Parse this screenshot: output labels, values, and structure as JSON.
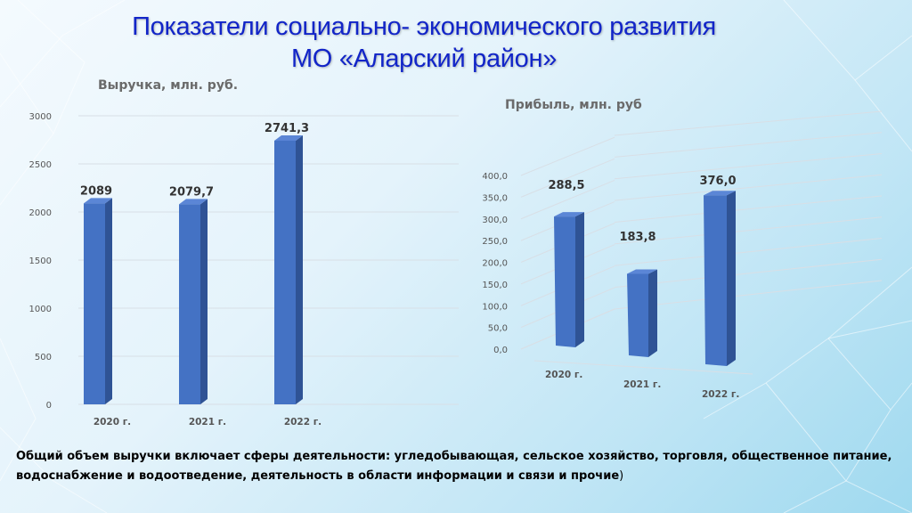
{
  "title_line1": "Показатели социально- экономического развития",
  "title_line2": "МО «Аларский район»",
  "note_text": "Общий объем выручки включает сферы деятельности: угледобывающая, сельское хозяйство, торговля, общественное питание, водоснабжение и водоотведение, деятельность в области информации и связи и прочие",
  "note_paren": ")",
  "colors": {
    "bar_front": "#4472c4",
    "bar_side": "#2f5395",
    "bar_top": "#5b86d6",
    "title": "#1225c8"
  },
  "chart_data": [
    {
      "type": "bar",
      "title": "Выручка, млн. руб.",
      "categories": [
        "2020 г.",
        "2021 г.",
        "2022 г."
      ],
      "values": [
        2089,
        2079.7,
        2741.3
      ],
      "value_labels": [
        "2089",
        "2079,7",
        "2741,3"
      ],
      "ylim": [
        0,
        3000
      ],
      "yticks": [
        "0",
        "500",
        "1000",
        "1500",
        "2000",
        "2500",
        "3000"
      ],
      "grid": true,
      "style": "3d"
    },
    {
      "type": "bar",
      "title": "Прибыль, млн. руб",
      "categories": [
        "2020 г.",
        "2021 г.",
        "2022 г."
      ],
      "values": [
        288.5,
        183.8,
        376.0
      ],
      "value_labels": [
        "288,5",
        "183,8",
        "376,0"
      ],
      "ylim": [
        0,
        400
      ],
      "yticks": [
        "0,0",
        "50,0",
        "100,0",
        "150,0",
        "200,0",
        "250,0",
        "300,0",
        "350,0",
        "400,0"
      ],
      "grid": true,
      "style": "3d-perspective"
    }
  ]
}
